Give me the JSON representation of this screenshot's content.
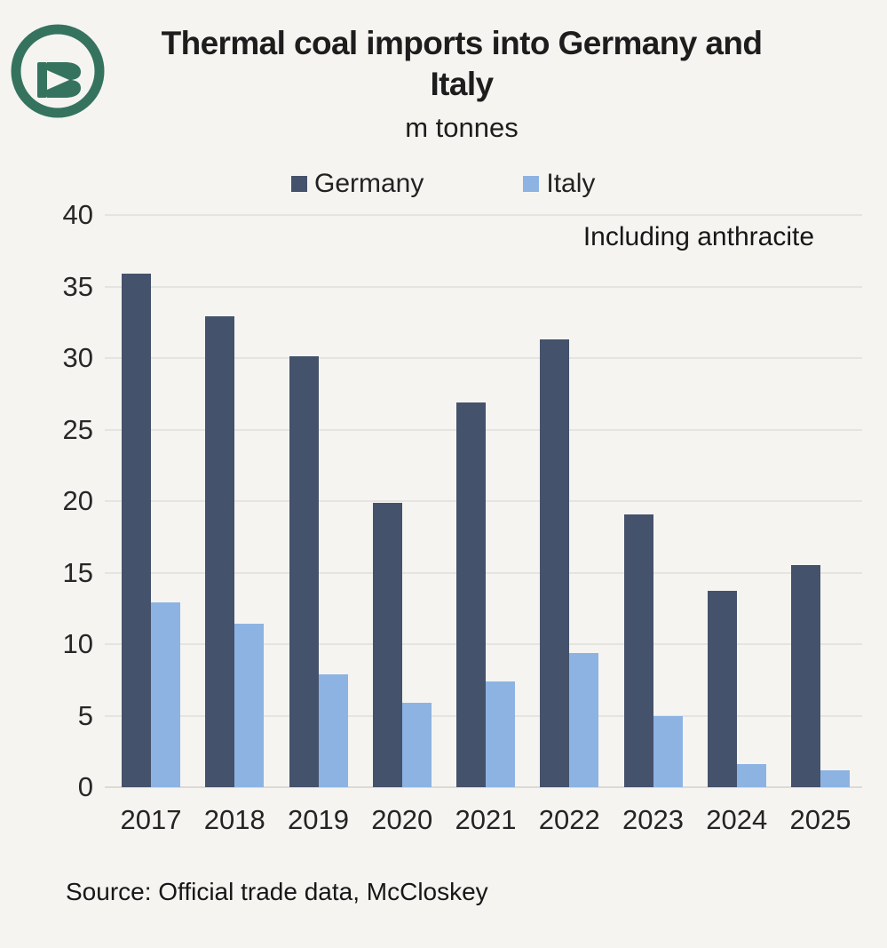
{
  "header": {
    "title_line1": "Thermal coal imports into Germany and",
    "title_line2": "Italy",
    "subtitle": "m tonnes",
    "logo_icon": "b-in-circle-logo",
    "logo_color": "#35735F"
  },
  "legend": {
    "items": [
      {
        "label": "Germany",
        "color": "#45526C"
      },
      {
        "label": "Italy",
        "color": "#8DB3E2"
      }
    ]
  },
  "annotation": "Including anthracite",
  "source": "Source: Official trade data, McCloskey",
  "colors": {
    "background": "#F5F4F1",
    "gridline": "#E6E4E1",
    "baseline": "#DCDAD7",
    "text": "#1D1D1D",
    "germany_bar": "#45526C",
    "italy_bar": "#8DB3E2",
    "logo_green": "#35735F"
  },
  "chart_data": {
    "type": "bar",
    "title": "Thermal coal imports into Germany and Italy",
    "subtitle": "m tonnes",
    "annotation": "Including anthracite",
    "source": "Source: Official trade data, McCloskey",
    "categories": [
      "2017",
      "2018",
      "2019",
      "2020",
      "2021",
      "2022",
      "2023",
      "2024",
      "2025"
    ],
    "series": [
      {
        "name": "Germany",
        "color": "#45526C",
        "values": [
          35.9,
          32.9,
          30.1,
          19.9,
          26.9,
          31.3,
          19.1,
          13.7,
          15.5
        ]
      },
      {
        "name": "Italy",
        "color": "#8DB3E2",
        "values": [
          12.9,
          11.4,
          7.9,
          5.9,
          7.4,
          9.4,
          5.0,
          1.6,
          1.2
        ]
      }
    ],
    "xlabel": "",
    "ylabel": "m tonnes",
    "ylim": [
      0,
      40
    ],
    "yticks": [
      0,
      5,
      10,
      15,
      20,
      25,
      30,
      35,
      40
    ],
    "grid": true,
    "legend_position": "top"
  }
}
